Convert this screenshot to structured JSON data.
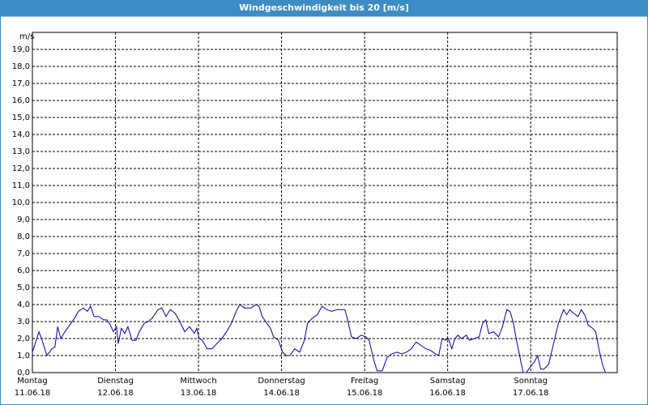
{
  "chart_data": {
    "type": "line",
    "title": "Windgeschwindigkeit bis 20 [m/s]",
    "y_label": "m/s",
    "x": [
      0,
      1.9,
      2.8,
      4.2,
      5.6,
      6.5,
      7.3,
      8.2,
      9.4,
      10.8,
      12.2,
      13.3,
      14.7,
      15.9,
      16.8,
      17.8,
      19.2,
      20.6,
      21.5,
      22.5,
      23.4,
      24.3,
      24.8,
      25.7,
      26.7,
      27.6,
      28.8,
      29.9,
      30.9,
      32.3,
      33.5,
      34.6,
      36.3,
      37.4,
      38.6,
      39.8,
      41.2,
      42.6,
      44.0,
      45.4,
      46.8,
      47.5,
      48.2,
      49.1,
      50.5,
      51.9,
      53.3,
      54.7,
      56.1,
      57.5,
      58.9,
      59.9,
      61.3,
      63.2,
      64.6,
      65.5,
      66.4,
      67.4,
      68.8,
      69.7,
      71.1,
      72.3,
      73.4,
      74.4,
      75.8,
      77.2,
      78.6,
      79.5,
      80.9,
      82.3,
      83.7,
      85.1,
      86.5,
      88.0,
      89.4,
      90.3,
      91.2,
      92.2,
      93.6,
      95.0,
      96.4,
      97.3,
      98.7,
      99.6,
      101.1,
      102.5,
      103.9,
      105.3,
      106.7,
      108.1,
      109.5,
      110.9,
      112.3,
      113.7,
      115.1,
      116.5,
      117.4,
      118.4,
      119.3,
      120.2,
      121.2,
      122.1,
      123.0,
      124.0,
      125.4,
      126.3,
      127.7,
      129.1,
      130.1,
      131.0,
      131.9,
      133.3,
      134.7,
      135.7,
      137.1,
      138.0,
      138.9,
      139.9,
      140.8,
      141.8,
      142.7,
      144.1,
      145.0,
      146.0,
      146.9,
      147.8,
      149.2,
      150.6,
      152.0,
      153.5,
      154.4,
      155.3,
      156.3,
      157.7,
      158.6,
      159.6,
      160.6,
      161.9,
      162.8,
      163.7,
      164.7,
      165.6,
      166.5
    ],
    "series": [
      {
        "name": "Windgeschwindigkeit",
        "color": "#0000a0",
        "values": [
          1.2,
          2.4,
          1.9,
          1.0,
          1.4,
          1.5,
          2.7,
          2.0,
          2.4,
          2.8,
          3.2,
          3.6,
          3.8,
          3.6,
          3.9,
          3.3,
          3.3,
          3.1,
          3.1,
          2.8,
          2.4,
          2.7,
          1.7,
          2.6,
          2.3,
          2.7,
          1.9,
          1.9,
          2.4,
          2.9,
          3.0,
          3.2,
          3.7,
          3.8,
          3.3,
          3.7,
          3.5,
          3.0,
          2.4,
          2.7,
          2.3,
          2.6,
          2.0,
          1.9,
          1.4,
          1.4,
          1.7,
          2.0,
          2.4,
          2.9,
          3.6,
          4.0,
          3.8,
          3.8,
          4.0,
          3.9,
          3.3,
          3.0,
          2.6,
          2.1,
          1.9,
          1.2,
          1.0,
          1.0,
          1.4,
          1.2,
          1.9,
          2.9,
          3.2,
          3.4,
          3.9,
          3.7,
          3.6,
          3.7,
          3.7,
          3.7,
          3.0,
          2.1,
          2.0,
          2.2,
          2.1,
          1.9,
          0.7,
          0.1,
          0.1,
          0.9,
          1.1,
          1.2,
          1.1,
          1.2,
          1.4,
          1.8,
          1.6,
          1.4,
          1.3,
          1.1,
          1.0,
          2.0,
          1.9,
          2.0,
          1.4,
          2.0,
          2.2,
          2.0,
          2.2,
          1.9,
          2.0,
          2.1,
          2.9,
          3.1,
          2.3,
          2.4,
          2.1,
          2.6,
          3.7,
          3.6,
          3.0,
          1.9,
          1.0,
          0.0,
          0.0,
          0.4,
          0.6,
          1.0,
          0.2,
          0.2,
          0.5,
          1.7,
          2.9,
          3.7,
          3.4,
          3.7,
          3.5,
          3.3,
          3.7,
          3.4,
          2.8,
          2.6,
          2.4,
          1.4,
          0.5,
          0.0,
          0.0
        ]
      }
    ],
    "xlim": [
      0,
      169
    ],
    "xticks": [
      {
        "value": 0,
        "label": "Montag\n11.06.18"
      },
      {
        "value": 24,
        "label": "Dienstag\n12.06.18"
      },
      {
        "value": 48,
        "label": "Mittwoch\n13.06.18"
      },
      {
        "value": 72,
        "label": "Donnerstag\n14.06.18"
      },
      {
        "value": 96,
        "label": "Freitag\n15.06.18"
      },
      {
        "value": 120,
        "label": "Samstag\n16.06.18"
      },
      {
        "value": 144,
        "label": "Sonntag\n17.06.18"
      }
    ],
    "ylim": [
      0,
      20
    ],
    "yticks": [
      {
        "value": 0,
        "label": "0,0"
      },
      {
        "value": 1,
        "label": "1,0"
      },
      {
        "value": 2,
        "label": "2,0"
      },
      {
        "value": 3,
        "label": "3,0"
      },
      {
        "value": 4,
        "label": "4,0"
      },
      {
        "value": 5,
        "label": "5,0"
      },
      {
        "value": 6,
        "label": "6,0"
      },
      {
        "value": 7,
        "label": "7,0"
      },
      {
        "value": 8,
        "label": "8,0"
      },
      {
        "value": 9,
        "label": "9,0"
      },
      {
        "value": 10,
        "label": "10,0"
      },
      {
        "value": 11,
        "label": "11,0"
      },
      {
        "value": 12,
        "label": "12,0"
      },
      {
        "value": 13,
        "label": "13,0"
      },
      {
        "value": 14,
        "label": "14,0"
      },
      {
        "value": 15,
        "label": "15,0"
      },
      {
        "value": 16,
        "label": "16,0"
      },
      {
        "value": 17,
        "label": "17,0"
      },
      {
        "value": 18,
        "label": "18,0"
      },
      {
        "value": 19,
        "label": "19,0"
      }
    ],
    "grid": true
  }
}
